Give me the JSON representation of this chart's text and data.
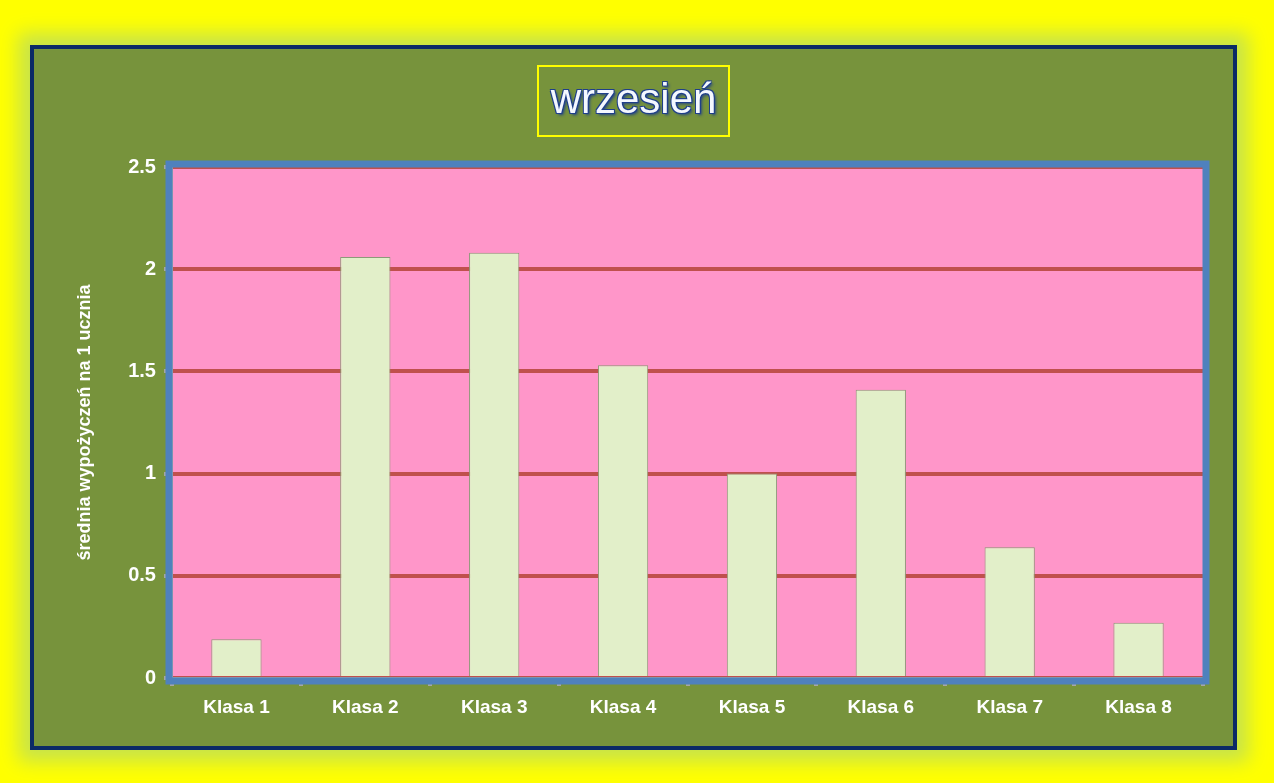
{
  "chart_data": {
    "type": "bar",
    "title": "wrzesień",
    "ylabel": "średnia wypożyczeń na 1 ucznia",
    "categories": [
      "Klasa 1",
      "Klasa 2",
      "Klasa 3",
      "Klasa 4",
      "Klasa 5",
      "Klasa 6",
      "Klasa 7",
      "Klasa 8"
    ],
    "values": [
      0.19,
      2.06,
      2.08,
      1.53,
      1.0,
      1.41,
      0.64,
      0.27
    ],
    "color": "#e2efc9",
    "ylim": [
      0,
      2.5
    ],
    "yticks": [
      0,
      0.5,
      1,
      1.5,
      2,
      2.5
    ],
    "grid": "y"
  }
}
